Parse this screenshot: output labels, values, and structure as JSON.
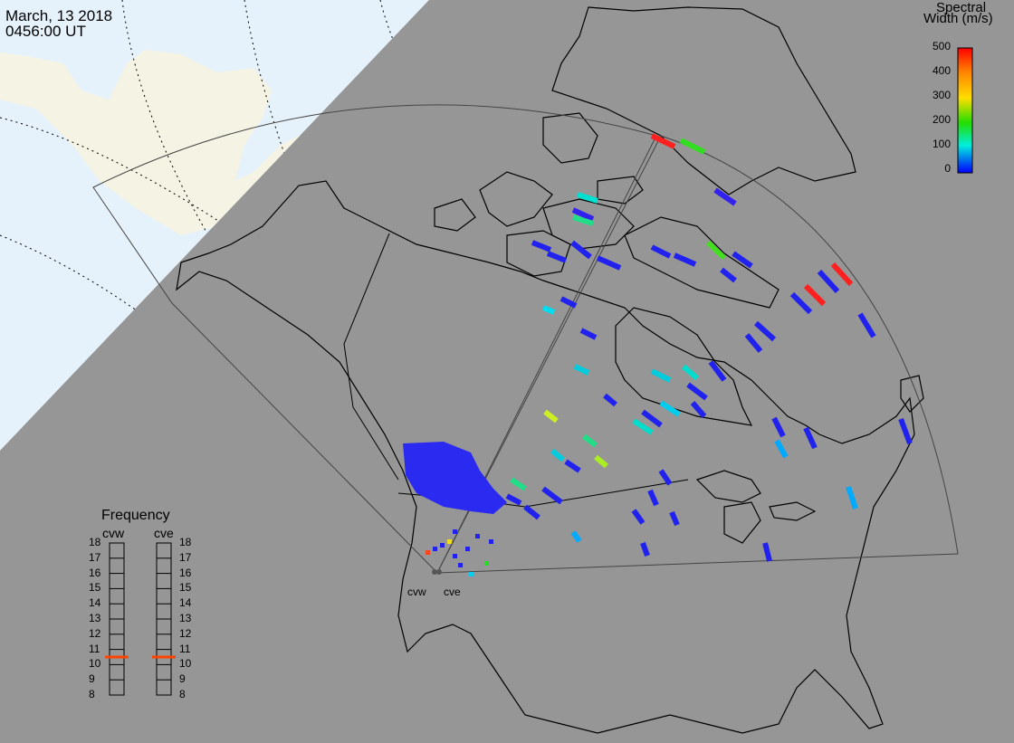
{
  "header": {
    "date": "March, 13 2018",
    "time": "0456:00 UT"
  },
  "colorbar": {
    "title_line1": "Spectral",
    "title_line2": "Width (m/s)",
    "ticks": [
      "500",
      "400",
      "300",
      "200",
      "100",
      "0"
    ],
    "colors": [
      "#ff0000",
      "#ff8800",
      "#ffdd00",
      "#22dd00",
      "#00eedd",
      "#0000ff"
    ]
  },
  "frequency": {
    "title": "Frequency",
    "radars": [
      "cvw",
      "cve"
    ],
    "scale": [
      "18",
      "17",
      "16",
      "15",
      "14",
      "13",
      "12",
      "11",
      "10",
      "9",
      "8"
    ],
    "values_mhz": [
      10.5,
      10.5
    ],
    "indicator_color": "#ff4400"
  },
  "sites": [
    "cvw",
    "cve"
  ],
  "map": {
    "day_color": "#f5f4e4",
    "ocean_color": "#e6f2fb",
    "night_color": "#969696"
  }
}
